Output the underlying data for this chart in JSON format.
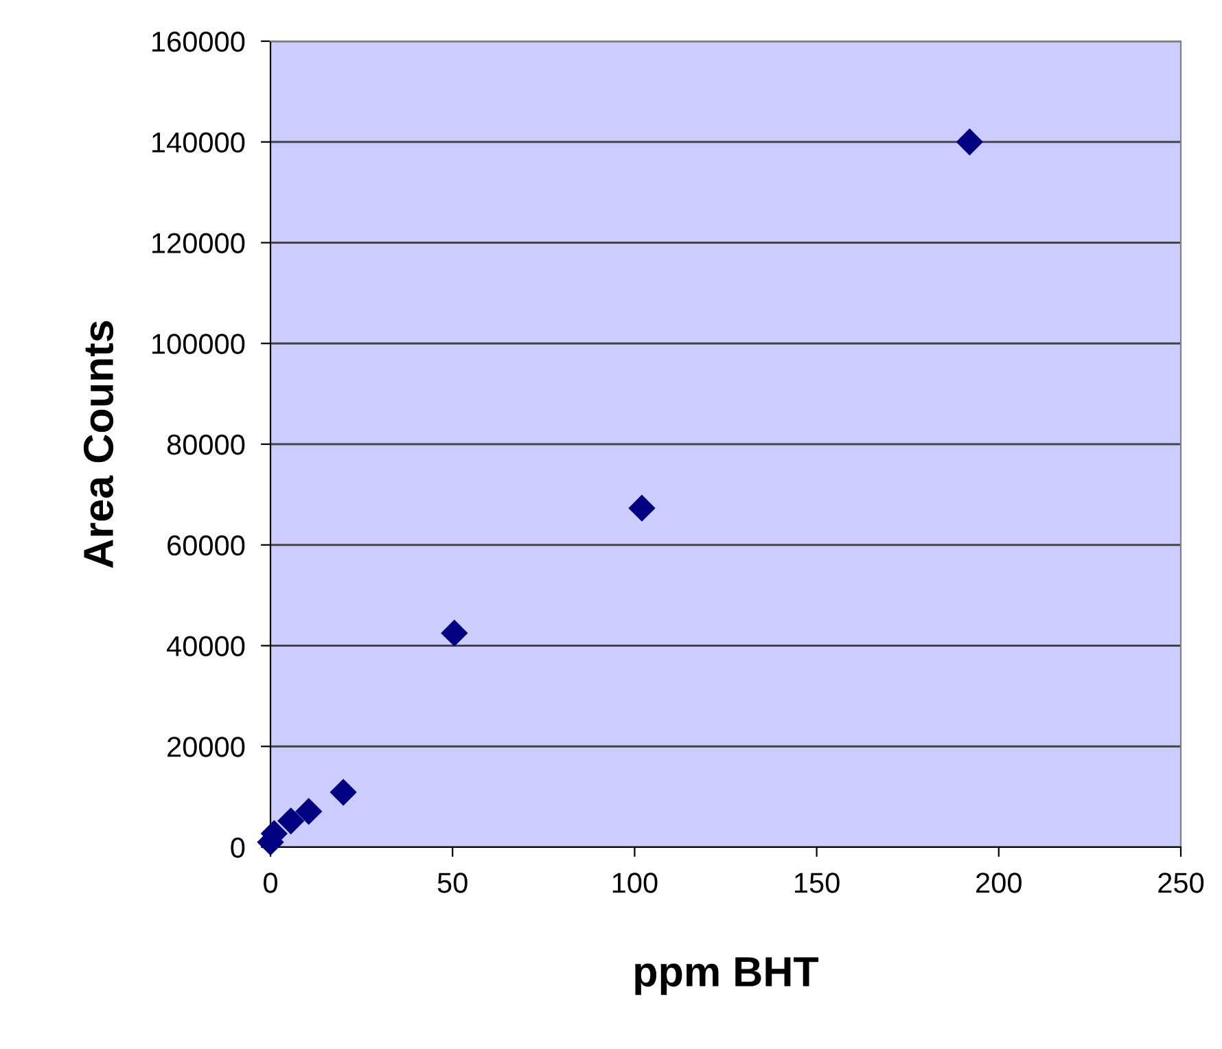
{
  "chart_data": {
    "type": "scatter",
    "xlabel": "ppm BHT",
    "ylabel": "Area Counts",
    "x": [
      0,
      1,
      5.6,
      10.5,
      20,
      50.5,
      102,
      192
    ],
    "values": [
      1000,
      2700,
      5200,
      7100,
      10900,
      42500,
      67300,
      140000
    ],
    "color": "#000080",
    "marker": "diamond",
    "xlim": [
      0,
      250
    ],
    "xticks": [
      0,
      50,
      100,
      150,
      200,
      250
    ],
    "ylim": [
      0,
      160000
    ],
    "yticks": [
      0,
      20000,
      40000,
      60000,
      80000,
      100000,
      120000,
      140000,
      160000
    ],
    "grid": "y",
    "legend": false
  }
}
